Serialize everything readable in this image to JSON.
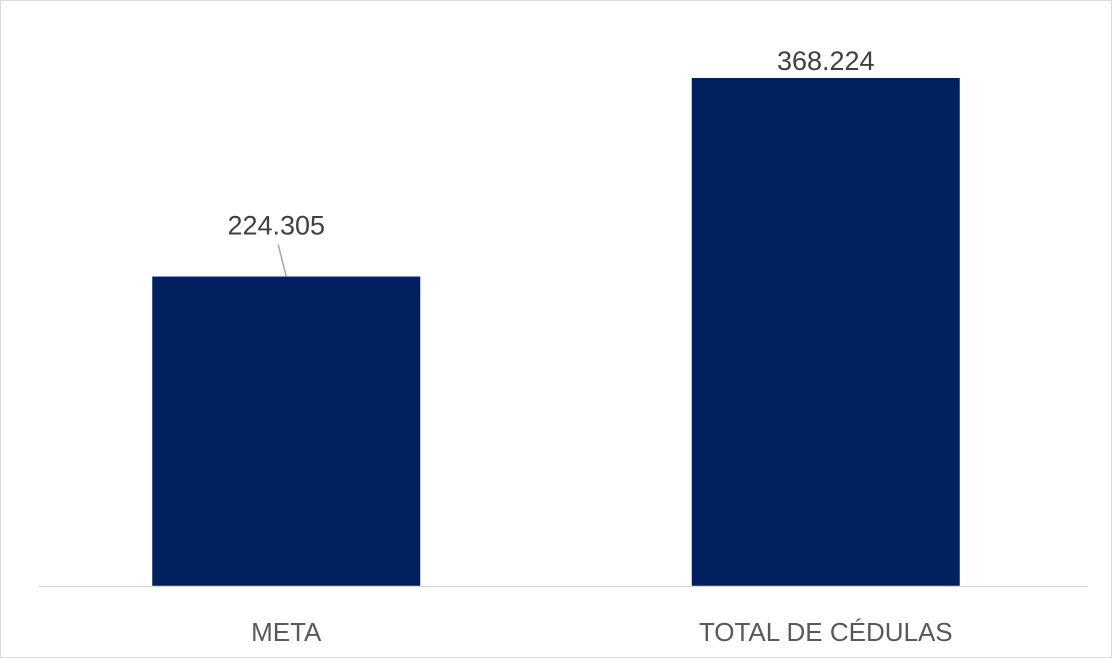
{
  "chart_data": {
    "type": "bar",
    "categories": [
      "META",
      "TOTAL DE CÉDULAS"
    ],
    "values": [
      224305,
      368224
    ],
    "data_labels": [
      "224.305",
      "368.224"
    ],
    "title": "",
    "xlabel": "",
    "ylabel": "",
    "ylim": [
      0,
      400000
    ],
    "grid": false,
    "legend": "none",
    "bar_color": "#002060",
    "axis_color": "#d9d9d9",
    "label_color": "#404040",
    "category_color": "#595959",
    "leader_line_color": "#a6a6a6"
  }
}
